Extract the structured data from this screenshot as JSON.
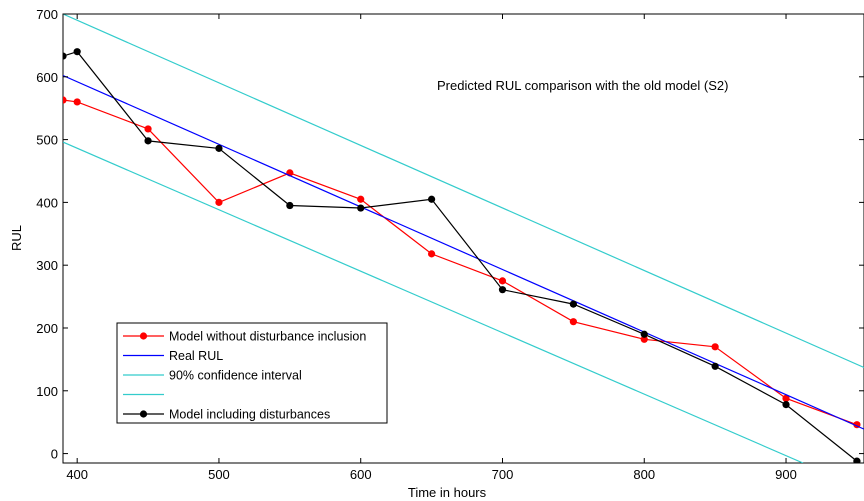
{
  "chart_data": {
    "type": "line",
    "title": "Predicted RUL comparison with the old model (S2)",
    "xlabel": "Time in hours",
    "ylabel": "RUL",
    "xlim": [
      390,
      955
    ],
    "ylim": [
      -15,
      700
    ],
    "xticks": [
      400,
      500,
      600,
      700,
      800,
      900
    ],
    "yticks": [
      0,
      100,
      200,
      300,
      400,
      500,
      600,
      700
    ],
    "grid": false,
    "legend_position": "lower-left",
    "series": [
      {
        "name": "Model without disturbance inclusion",
        "color": "#ff0000",
        "marker": "dot",
        "x": [
          390,
          400,
          450,
          500,
          550,
          600,
          650,
          700,
          750,
          800,
          850,
          900,
          950
        ],
        "y": [
          563,
          560,
          517,
          400,
          447,
          405,
          318,
          275,
          210,
          182,
          170,
          88,
          46
        ]
      },
      {
        "name": "Real RUL",
        "color": "#0000ff",
        "marker": "none",
        "x": [
          390,
          955
        ],
        "y": [
          602,
          39
        ]
      },
      {
        "name": "90% confidence interval",
        "color": "#33cccc",
        "marker": "none",
        "x": [
          390,
          955
        ],
        "y": [
          700,
          137
        ]
      },
      {
        "name": "",
        "color": "#33cccc",
        "marker": "none",
        "x": [
          390,
          912
        ],
        "y": [
          496,
          -15
        ]
      },
      {
        "name": "Model including disturbances",
        "color": "#000000",
        "marker": "dot",
        "x": [
          390,
          400,
          450,
          500,
          550,
          600,
          650,
          700,
          750,
          800,
          850,
          900,
          950
        ],
        "y": [
          633,
          640,
          498,
          486,
          395,
          391,
          405,
          261,
          238,
          190,
          139,
          78,
          -12
        ]
      }
    ]
  }
}
